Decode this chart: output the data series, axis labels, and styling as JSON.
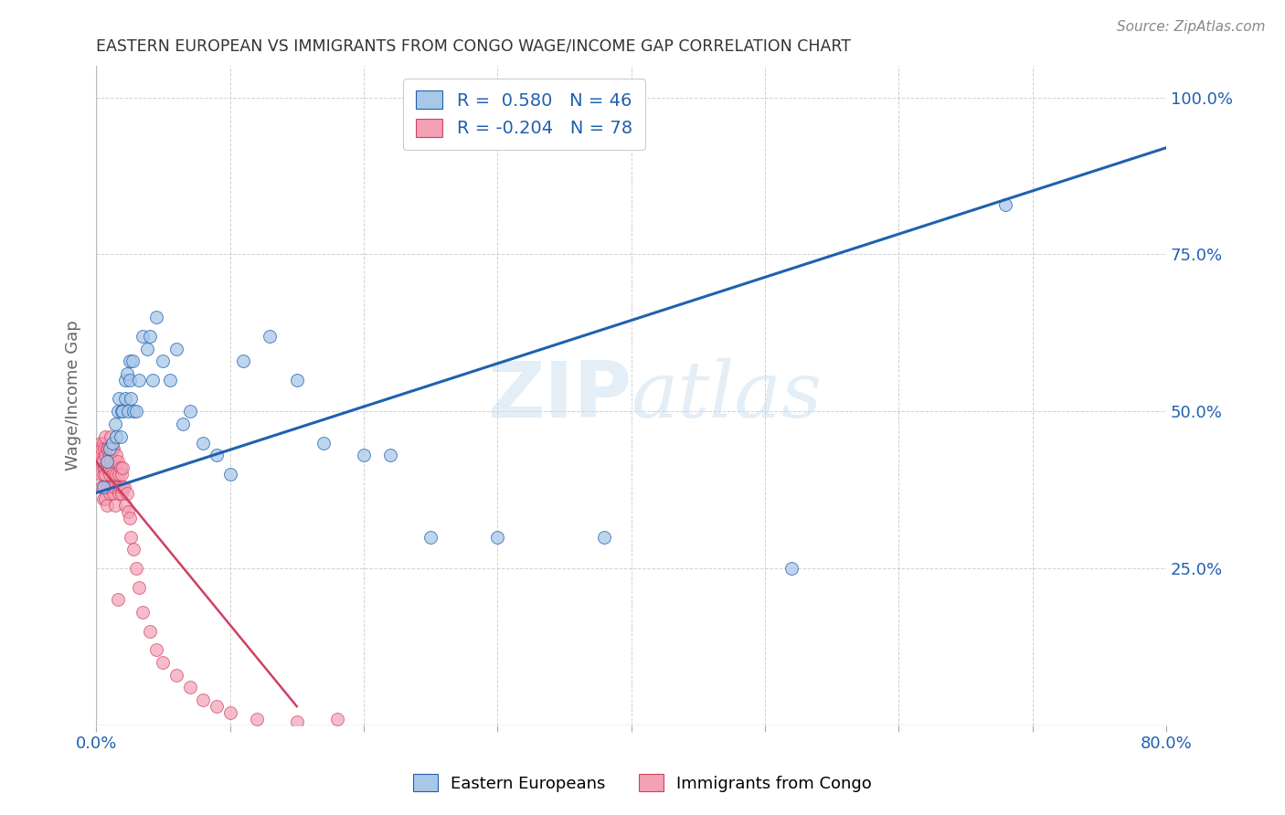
{
  "title": "EASTERN EUROPEAN VS IMMIGRANTS FROM CONGO WAGE/INCOME GAP CORRELATION CHART",
  "source": "Source: ZipAtlas.com",
  "ylabel": "Wage/Income Gap",
  "xlim": [
    0.0,
    0.8
  ],
  "ylim": [
    0.0,
    1.05
  ],
  "blue_r": 0.58,
  "blue_n": 46,
  "pink_r": -0.204,
  "pink_n": 78,
  "blue_color": "#a8c8e8",
  "pink_color": "#f4a0b5",
  "blue_line_color": "#2060b0",
  "pink_line_color": "#d04060",
  "watermark": "ZIPatlas",
  "blue_x": [
    0.005,
    0.008,
    0.01,
    0.012,
    0.014,
    0.015,
    0.016,
    0.017,
    0.018,
    0.019,
    0.02,
    0.022,
    0.022,
    0.023,
    0.024,
    0.025,
    0.025,
    0.026,
    0.027,
    0.028,
    0.03,
    0.032,
    0.035,
    0.038,
    0.04,
    0.042,
    0.045,
    0.05,
    0.055,
    0.06,
    0.065,
    0.07,
    0.08,
    0.09,
    0.1,
    0.11,
    0.13,
    0.15,
    0.17,
    0.2,
    0.22,
    0.25,
    0.3,
    0.38,
    0.52,
    0.68
  ],
  "blue_y": [
    0.38,
    0.42,
    0.44,
    0.45,
    0.48,
    0.46,
    0.5,
    0.52,
    0.46,
    0.5,
    0.5,
    0.52,
    0.55,
    0.56,
    0.5,
    0.55,
    0.58,
    0.52,
    0.58,
    0.5,
    0.5,
    0.55,
    0.62,
    0.6,
    0.62,
    0.55,
    0.65,
    0.58,
    0.55,
    0.6,
    0.48,
    0.5,
    0.45,
    0.43,
    0.4,
    0.58,
    0.62,
    0.55,
    0.45,
    0.43,
    0.43,
    0.3,
    0.3,
    0.3,
    0.25,
    0.83
  ],
  "pink_x": [
    0.002,
    0.002,
    0.003,
    0.003,
    0.003,
    0.004,
    0.004,
    0.004,
    0.005,
    0.005,
    0.005,
    0.005,
    0.006,
    0.006,
    0.006,
    0.007,
    0.007,
    0.007,
    0.007,
    0.008,
    0.008,
    0.008,
    0.008,
    0.009,
    0.009,
    0.009,
    0.009,
    0.01,
    0.01,
    0.01,
    0.01,
    0.01,
    0.011,
    0.011,
    0.011,
    0.012,
    0.012,
    0.012,
    0.013,
    0.013,
    0.013,
    0.014,
    0.014,
    0.014,
    0.015,
    0.015,
    0.016,
    0.016,
    0.017,
    0.017,
    0.018,
    0.018,
    0.019,
    0.019,
    0.02,
    0.02,
    0.021,
    0.022,
    0.023,
    0.024,
    0.025,
    0.026,
    0.028,
    0.03,
    0.032,
    0.035,
    0.04,
    0.045,
    0.05,
    0.06,
    0.07,
    0.08,
    0.09,
    0.1,
    0.12,
    0.15,
    0.016,
    0.18
  ],
  "pink_y": [
    0.42,
    0.44,
    0.4,
    0.43,
    0.45,
    0.38,
    0.42,
    0.44,
    0.36,
    0.4,
    0.42,
    0.45,
    0.38,
    0.41,
    0.44,
    0.36,
    0.4,
    0.43,
    0.46,
    0.38,
    0.41,
    0.44,
    0.35,
    0.38,
    0.42,
    0.44,
    0.38,
    0.4,
    0.43,
    0.37,
    0.41,
    0.44,
    0.38,
    0.42,
    0.46,
    0.38,
    0.41,
    0.44,
    0.37,
    0.4,
    0.44,
    0.38,
    0.42,
    0.35,
    0.4,
    0.43,
    0.38,
    0.42,
    0.37,
    0.4,
    0.38,
    0.41,
    0.37,
    0.4,
    0.38,
    0.41,
    0.38,
    0.35,
    0.37,
    0.34,
    0.33,
    0.3,
    0.28,
    0.25,
    0.22,
    0.18,
    0.15,
    0.12,
    0.1,
    0.08,
    0.06,
    0.04,
    0.03,
    0.02,
    0.01,
    0.005,
    0.2,
    0.01
  ],
  "blue_line_x0": 0.0,
  "blue_line_x1": 0.8,
  "blue_line_y0": 0.37,
  "blue_line_y1": 0.92,
  "pink_line_x0": 0.0,
  "pink_line_x1": 0.15,
  "pink_line_y0": 0.42,
  "pink_line_y1": 0.03
}
